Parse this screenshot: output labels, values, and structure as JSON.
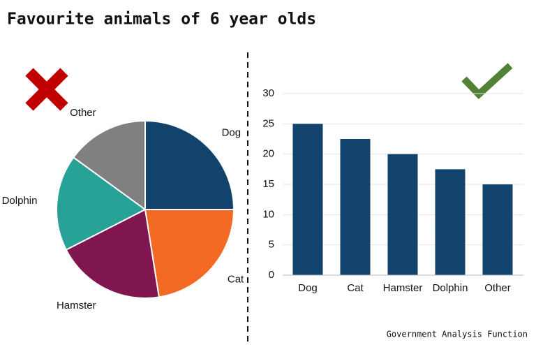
{
  "title": "Favourite animals of 6 year olds",
  "source": "Government Analysis Function",
  "chart_data": [
    {
      "type": "pie",
      "categories": [
        "Dog",
        "Cat",
        "Hamster",
        "Dolphin",
        "Other"
      ],
      "values": [
        25,
        22.5,
        20,
        17.5,
        15
      ],
      "colors": [
        "#12436d",
        "#f46a25",
        "#801650",
        "#28a197",
        "#808080"
      ]
    },
    {
      "type": "bar",
      "categories": [
        "Dog",
        "Cat",
        "Hamster",
        "Dolphin",
        "Other"
      ],
      "values": [
        25,
        22.5,
        20,
        17.5,
        15
      ],
      "color": "#12436d",
      "ylim": [
        0,
        30
      ],
      "yticks": [
        0,
        5,
        10,
        15,
        20,
        25,
        30
      ],
      "grid": true
    }
  ]
}
